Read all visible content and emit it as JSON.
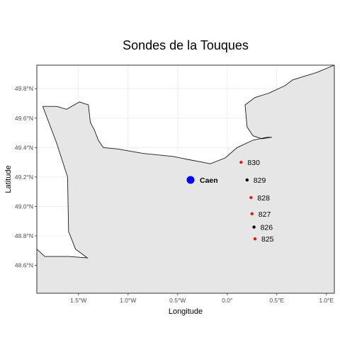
{
  "title": "Sondes de la Touques",
  "xlabel": "Longitude",
  "ylabel": "Latitude",
  "colors": {
    "panel_bg": "#ffffff",
    "land_fill": "#e6e6e6",
    "coast_stroke": "#1a1a1a",
    "grid": "#ebebeb",
    "red": "#e31a1c",
    "black": "#000000",
    "city": "#0000ff"
  },
  "x_ticks": [
    {
      "value": -1.5,
      "label": "1.5°W"
    },
    {
      "value": -1.0,
      "label": "1.0°W"
    },
    {
      "value": -0.5,
      "label": "0.5°W"
    },
    {
      "value": 0.0,
      "label": "0.0°"
    },
    {
      "value": 0.5,
      "label": "0.5°E"
    },
    {
      "value": 1.0,
      "label": "1.0°E"
    }
  ],
  "y_ticks": [
    {
      "value": 48.6,
      "label": "48.6°N"
    },
    {
      "value": 48.8,
      "label": "48.8°N"
    },
    {
      "value": 49.0,
      "label": "49.0°N"
    },
    {
      "value": 49.2,
      "label": "49.2°N"
    },
    {
      "value": 49.4,
      "label": "49.4°N"
    },
    {
      "value": 49.6,
      "label": "49.6°N"
    },
    {
      "value": 49.8,
      "label": "49.8°N"
    }
  ],
  "xlim": [
    -1.92,
    1.08
  ],
  "ylim": [
    48.41,
    49.96
  ],
  "coastline": [
    [
      -1.92,
      48.71
    ],
    [
      -1.84,
      48.66
    ],
    [
      -1.6,
      48.66
    ],
    [
      -1.41,
      48.65
    ],
    [
      -1.53,
      48.71
    ],
    [
      -1.6,
      48.83
    ],
    [
      -1.61,
      49.2
    ],
    [
      -1.72,
      49.43
    ],
    [
      -1.81,
      49.59
    ],
    [
      -1.86,
      49.68
    ],
    [
      -1.72,
      49.68
    ],
    [
      -1.62,
      49.66
    ],
    [
      -1.49,
      49.71
    ],
    [
      -1.4,
      49.69
    ],
    [
      -1.38,
      49.57
    ],
    [
      -1.34,
      49.52
    ],
    [
      -1.3,
      49.45
    ],
    [
      -1.25,
      49.4
    ],
    [
      -1.1,
      49.39
    ],
    [
      -0.85,
      49.36
    ],
    [
      -0.55,
      49.34
    ],
    [
      -0.4,
      49.32
    ],
    [
      -0.17,
      49.29
    ],
    [
      -0.02,
      49.33
    ],
    [
      0.1,
      49.4
    ],
    [
      0.26,
      49.45
    ],
    [
      0.4,
      49.47
    ],
    [
      0.45,
      49.47
    ],
    [
      0.35,
      49.46
    ],
    [
      0.26,
      49.48
    ],
    [
      0.2,
      49.54
    ],
    [
      0.18,
      49.69
    ],
    [
      0.28,
      49.74
    ],
    [
      0.42,
      49.77
    ],
    [
      0.58,
      49.82
    ],
    [
      0.66,
      49.86
    ],
    [
      0.9,
      49.91
    ],
    [
      1.08,
      49.96
    ]
  ],
  "city": {
    "name": "Caen",
    "lon": -0.37,
    "lat": 49.18
  },
  "points": [
    {
      "label": "830",
      "lon": 0.14,
      "lat": 49.3,
      "color": "red"
    },
    {
      "label": "829",
      "lon": 0.2,
      "lat": 49.18,
      "color": "black"
    },
    {
      "label": "828",
      "lon": 0.24,
      "lat": 49.06,
      "color": "red"
    },
    {
      "label": "827",
      "lon": 0.25,
      "lat": 48.95,
      "color": "red"
    },
    {
      "label": "826",
      "lon": 0.27,
      "lat": 48.86,
      "color": "black"
    },
    {
      "label": "825",
      "lon": 0.28,
      "lat": 48.78,
      "color": "red"
    }
  ]
}
